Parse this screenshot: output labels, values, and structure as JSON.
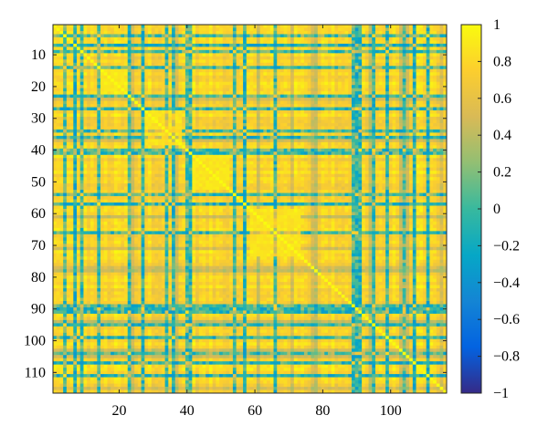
{
  "chart_data": {
    "type": "heatmap",
    "title": "",
    "xlabel": "",
    "ylabel": "",
    "matrix_size": 116,
    "x_range": [
      0.5,
      116.5
    ],
    "y_range": [
      0.5,
      116.5
    ],
    "x_ticks": [
      20,
      40,
      60,
      80,
      100
    ],
    "x_tick_labels": [
      "20",
      "40",
      "60",
      "80",
      "100"
    ],
    "y_ticks": [
      10,
      20,
      30,
      40,
      50,
      60,
      70,
      80,
      90,
      100,
      110
    ],
    "y_tick_labels": [
      "10",
      "20",
      "30",
      "40",
      "50",
      "60",
      "70",
      "80",
      "90",
      "100",
      "110"
    ],
    "value_range": [
      -1,
      1
    ],
    "colorbar": {
      "ticks": [
        1,
        0.8,
        0.6,
        0.4,
        0.2,
        0,
        -0.2,
        -0.4,
        -0.6,
        -0.8,
        -1
      ],
      "tick_labels": [
        "1",
        "0.8",
        "0.6",
        "0.4",
        "0.2",
        "0",
        "−0.2",
        "−0.4",
        "−0.6",
        "−0.8",
        "−1"
      ]
    },
    "colormap": "parula",
    "colormap_stops": [
      "#352a87",
      "#0363e1",
      "#1485d4",
      "#06a7c6",
      "#38b99e",
      "#92bf73",
      "#d9ba56",
      "#fcce2e",
      "#f9fb0e"
    ],
    "structure": {
      "diagonal_value": 1,
      "typical_value": 0.7,
      "low_correlation_rows": [
        4,
        7,
        9,
        14,
        23,
        27,
        34,
        36,
        40,
        41,
        54,
        57,
        66,
        89,
        90,
        91,
        95,
        99,
        104,
        107,
        111
      ],
      "high_blocks": [
        [
          42,
          52
        ],
        [
          59,
          73
        ],
        [
          28,
          38
        ],
        [
          15,
          22
        ]
      ]
    },
    "grid": false,
    "legend": "none"
  }
}
